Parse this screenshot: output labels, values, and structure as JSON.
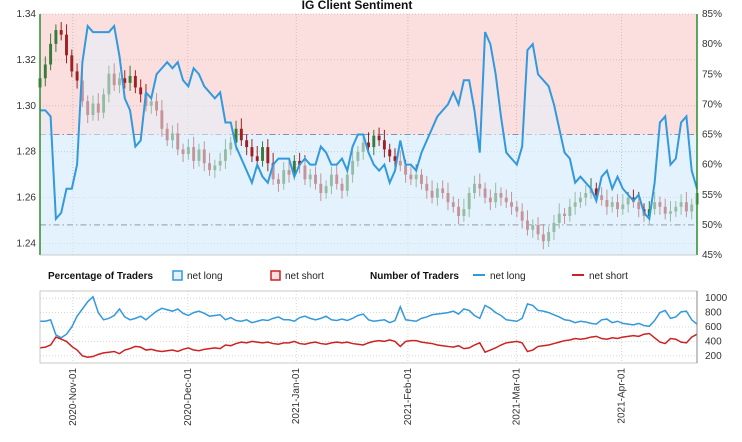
{
  "chart_data": {
    "type": "line",
    "title": "IG Client Sentiment",
    "colors": {
      "net_long": "#3399dd",
      "net_short": "#cc2222",
      "long_fill": "#e3f2fc",
      "short_fill": "#fbdede",
      "candle_up": "#3a7a3a",
      "candle_down": "#a02020",
      "axis": "#2e8b2e"
    },
    "x_tick_labels": [
      "2020-Nov-01",
      "2020-Dec-01",
      "2021-Jan-01",
      "2021-Feb-01",
      "2021-Mar-01",
      "2021-Apr-01"
    ],
    "price_axis": {
      "ylim": [
        1.235,
        1.34
      ],
      "ticks": [
        "1.24",
        "1.26",
        "1.28",
        "1.30",
        "1.32",
        "1.34"
      ]
    },
    "sentiment_axis": {
      "ylim": [
        45,
        85
      ],
      "ticks": [
        "45%",
        "50%",
        "55%",
        "60%",
        "65%",
        "70%",
        "75%",
        "80%",
        "85%"
      ]
    },
    "traders_axis": {
      "ylim": [
        100,
        1100
      ],
      "ticks": [
        "200",
        "400",
        "600",
        "800",
        "1000"
      ]
    },
    "reference_lines": {
      "sentiment_upper": 65,
      "sentiment_lower": 50
    },
    "legend": {
      "pct_heading": "Percentage of Traders",
      "num_heading": "Number of Traders",
      "net_long": "net long",
      "net_short": "net short"
    },
    "net_long_pct": [
      69,
      69,
      68,
      51,
      52,
      56,
      56,
      60,
      77,
      83,
      82,
      82,
      82,
      82,
      83,
      78,
      71,
      69,
      63,
      64,
      72,
      71,
      75,
      76,
      77,
      76,
      77,
      74,
      73,
      76,
      75,
      73,
      72,
      71,
      72,
      67,
      67,
      63,
      61,
      59,
      57,
      60,
      58,
      57,
      60,
      61,
      61,
      61,
      58,
      60,
      61,
      60,
      60,
      63,
      62,
      60,
      60,
      61,
      59,
      63,
      65,
      65,
      62,
      60,
      59,
      60,
      57,
      59,
      64,
      60,
      60,
      59,
      62,
      64,
      66,
      68,
      69,
      70,
      72,
      70,
      74,
      74,
      69,
      62,
      82,
      80,
      75,
      68,
      62,
      61,
      60,
      63,
      79,
      80,
      75,
      74,
      73,
      70,
      66,
      62,
      61,
      57,
      58,
      57,
      56,
      54,
      58,
      59,
      56,
      58,
      56,
      55,
      54,
      55,
      52,
      51,
      57,
      67,
      68,
      60,
      61,
      67,
      68,
      59,
      56
    ],
    "net_long_count": [
      680,
      680,
      700,
      490,
      450,
      500,
      600,
      750,
      850,
      950,
      1020,
      800,
      700,
      720,
      760,
      850,
      740,
      700,
      720,
      750,
      700,
      760,
      820,
      860,
      840,
      820,
      850,
      790,
      760,
      800,
      820,
      790,
      750,
      760,
      770,
      700,
      730,
      690,
      680,
      700,
      660,
      680,
      700,
      690,
      720,
      740,
      700,
      700,
      680,
      730,
      750,
      720,
      700,
      720,
      750,
      700,
      690,
      710,
      690,
      720,
      760,
      780,
      700,
      680,
      690,
      700,
      660,
      690,
      880,
      700,
      690,
      680,
      720,
      740,
      770,
      780,
      790,
      800,
      820,
      780,
      850,
      830,
      760,
      720,
      900,
      860,
      800,
      760,
      700,
      690,
      680,
      720,
      920,
      900,
      830,
      820,
      800,
      770,
      740,
      700,
      690,
      660,
      680,
      670,
      650,
      640,
      700,
      710,
      660,
      680,
      650,
      640,
      630,
      650,
      620,
      610,
      690,
      800,
      830,
      720,
      740,
      810,
      820,
      700,
      640
    ],
    "net_short_count": [
      310,
      320,
      350,
      460,
      430,
      400,
      330,
      280,
      200,
      180,
      190,
      220,
      240,
      250,
      260,
      230,
      280,
      300,
      330,
      320,
      280,
      290,
      270,
      260,
      270,
      280,
      260,
      290,
      310,
      280,
      270,
      290,
      300,
      310,
      300,
      350,
      340,
      370,
      390,
      380,
      400,
      390,
      380,
      390,
      370,
      360,
      380,
      380,
      400,
      370,
      360,
      380,
      390,
      370,
      360,
      380,
      390,
      380,
      390,
      370,
      360,
      350,
      380,
      400,
      410,
      400,
      420,
      400,
      330,
      400,
      410,
      410,
      390,
      380,
      370,
      350,
      340,
      330,
      320,
      340,
      300,
      310,
      350,
      380,
      250,
      280,
      310,
      350,
      380,
      390,
      400,
      380,
      260,
      280,
      330,
      340,
      350,
      370,
      390,
      410,
      420,
      440,
      430,
      440,
      460,
      470,
      440,
      430,
      450,
      440,
      460,
      470,
      480,
      470,
      500,
      510,
      450,
      390,
      370,
      440,
      430,
      390,
      380,
      460,
      500
    ],
    "price_close": [
      1.312,
      1.318,
      1.327,
      1.333,
      1.331,
      1.322,
      1.315,
      1.311,
      1.302,
      1.296,
      1.301,
      1.297,
      1.305,
      1.314,
      1.309,
      1.312,
      1.31,
      1.313,
      1.308,
      1.305,
      1.3,
      1.302,
      1.298,
      1.29,
      1.285,
      1.288,
      1.281,
      1.279,
      1.282,
      1.276,
      1.281,
      1.275,
      1.272,
      1.274,
      1.276,
      1.281,
      1.284,
      1.29,
      1.285,
      1.282,
      1.278,
      1.276,
      1.282,
      1.275,
      1.268,
      1.266,
      1.272,
      1.27,
      1.276,
      1.274,
      1.268,
      1.27,
      1.266,
      1.262,
      1.265,
      1.27,
      1.266,
      1.263,
      1.27,
      1.276,
      1.28,
      1.284,
      1.282,
      1.287,
      1.285,
      1.281,
      1.278,
      1.276,
      1.274,
      1.27,
      1.268,
      1.27,
      1.266,
      1.263,
      1.26,
      1.264,
      1.262,
      1.258,
      1.256,
      1.252,
      1.255,
      1.262,
      1.266,
      1.264,
      1.26,
      1.258,
      1.262,
      1.26,
      1.258,
      1.256,
      1.254,
      1.25,
      1.246,
      1.248,
      1.244,
      1.241,
      1.245,
      1.249,
      1.253,
      1.252,
      1.256,
      1.258,
      1.26,
      1.262,
      1.264,
      1.261,
      1.259,
      1.256,
      1.258,
      1.255,
      1.257,
      1.26,
      1.258,
      1.255,
      1.252,
      1.255,
      1.258,
      1.256,
      1.253,
      1.254,
      1.256,
      1.258,
      1.254,
      1.257,
      1.262
    ]
  }
}
